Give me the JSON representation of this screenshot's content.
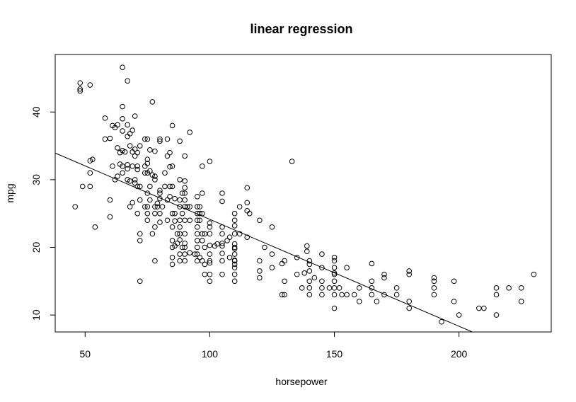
{
  "chart_data": {
    "type": "scatter",
    "title": "linear regression",
    "xlabel": "horsepower",
    "ylabel": "mpg",
    "xlim": [
      38,
      237
    ],
    "ylim": [
      7.5,
      48.5
    ],
    "x_ticks": [
      50,
      100,
      150,
      200
    ],
    "y_ticks": [
      10,
      20,
      30,
      40
    ],
    "grid": false,
    "legend": "none",
    "marker": "open-circle",
    "colors": {
      "points": "#000000",
      "line": "#000000",
      "frame": "#000000",
      "background": "#ffffff"
    },
    "regression_line": {
      "intercept": 39.94,
      "slope": -0.158
    },
    "points": [
      [
        46,
        26
      ],
      [
        48,
        44.3
      ],
      [
        48,
        43.4
      ],
      [
        48,
        43.1
      ],
      [
        49,
        29
      ],
      [
        52,
        44
      ],
      [
        52,
        29
      ],
      [
        52,
        31
      ],
      [
        52,
        32.8
      ],
      [
        53,
        33
      ],
      [
        54,
        23
      ],
      [
        58,
        36
      ],
      [
        58,
        39.1
      ],
      [
        60,
        36.1
      ],
      [
        60,
        27
      ],
      [
        60,
        24.5
      ],
      [
        61,
        38
      ],
      [
        61,
        32
      ],
      [
        62,
        37.7
      ],
      [
        62,
        30
      ],
      [
        63,
        38.1
      ],
      [
        63,
        34.7
      ],
      [
        63,
        30.5
      ],
      [
        64,
        32.3
      ],
      [
        64,
        34
      ],
      [
        65,
        46.6
      ],
      [
        65,
        40.8
      ],
      [
        65,
        39
      ],
      [
        65,
        37.2
      ],
      [
        65,
        34.3
      ],
      [
        65,
        32
      ],
      [
        65,
        31
      ],
      [
        66,
        34.1
      ],
      [
        67,
        44.6
      ],
      [
        67,
        38.1
      ],
      [
        67,
        36.4
      ],
      [
        67,
        31.6
      ],
      [
        67,
        30
      ],
      [
        67,
        32.2
      ],
      [
        68,
        36.8
      ],
      [
        68,
        29.8
      ],
      [
        68,
        35
      ],
      [
        68,
        26
      ],
      [
        69,
        37.3
      ],
      [
        69,
        32
      ],
      [
        69,
        26.6
      ],
      [
        69,
        34.1
      ],
      [
        70,
        39.4
      ],
      [
        70,
        33.5
      ],
      [
        70,
        29.5
      ],
      [
        70,
        34.5
      ],
      [
        70,
        30
      ],
      [
        71,
        32
      ],
      [
        71,
        31.5
      ],
      [
        71,
        29
      ],
      [
        71,
        25
      ],
      [
        71,
        34
      ],
      [
        72,
        27
      ],
      [
        72,
        22
      ],
      [
        72,
        35
      ],
      [
        72,
        21
      ],
      [
        72,
        15
      ],
      [
        72,
        29
      ],
      [
        74,
        36
      ],
      [
        74,
        32
      ],
      [
        74,
        26
      ],
      [
        74,
        31
      ],
      [
        75,
        36
      ],
      [
        75,
        33
      ],
      [
        75,
        28
      ],
      [
        75,
        26
      ],
      [
        75,
        25
      ],
      [
        75,
        24
      ],
      [
        75,
        32.4
      ],
      [
        75,
        31
      ],
      [
        76,
        31.3
      ],
      [
        76,
        34.4
      ],
      [
        76,
        29
      ],
      [
        76,
        27
      ],
      [
        77,
        41.5
      ],
      [
        77,
        30.7
      ],
      [
        77,
        22
      ],
      [
        78,
        30
      ],
      [
        78,
        25
      ],
      [
        78,
        34.2
      ],
      [
        78,
        30.5
      ],
      [
        78,
        26
      ],
      [
        78,
        23
      ],
      [
        78,
        18
      ],
      [
        79,
        26
      ],
      [
        79,
        26.5
      ],
      [
        80,
        36
      ],
      [
        80,
        28
      ],
      [
        80,
        25
      ],
      [
        80,
        28.4
      ],
      [
        80,
        27.2
      ],
      [
        80,
        35.7
      ],
      [
        80,
        23.7
      ],
      [
        81,
        26
      ],
      [
        82,
        31
      ],
      [
        82,
        29
      ],
      [
        83,
        27
      ],
      [
        83,
        24
      ],
      [
        83,
        33.5
      ],
      [
        83,
        36
      ],
      [
        84,
        31.9
      ],
      [
        84,
        34
      ],
      [
        84,
        29
      ],
      [
        84,
        27.5
      ],
      [
        85,
        32
      ],
      [
        85,
        38
      ],
      [
        85,
        29
      ],
      [
        85,
        25
      ],
      [
        85,
        23
      ],
      [
        85,
        21
      ],
      [
        85,
        20
      ],
      [
        85,
        18.5
      ],
      [
        85,
        17.5
      ],
      [
        86,
        25
      ],
      [
        86,
        27.2
      ],
      [
        86,
        23.9
      ],
      [
        86,
        20.2
      ],
      [
        87,
        22
      ],
      [
        87,
        20.6
      ],
      [
        88,
        26
      ],
      [
        88,
        22
      ],
      [
        88,
        23
      ],
      [
        88,
        19
      ],
      [
        88,
        35.7
      ],
      [
        88,
        30
      ],
      [
        88,
        27
      ],
      [
        88,
        24
      ],
      [
        88,
        18
      ],
      [
        88,
        21.1
      ],
      [
        89,
        28
      ],
      [
        89,
        25
      ],
      [
        89,
        20
      ],
      [
        90,
        28
      ],
      [
        90,
        33.5
      ],
      [
        90,
        26
      ],
      [
        90,
        24
      ],
      [
        90,
        22
      ],
      [
        90,
        28.8
      ],
      [
        90,
        29.8
      ],
      [
        90,
        19
      ],
      [
        90,
        20.6
      ],
      [
        90,
        18
      ],
      [
        90,
        20
      ],
      [
        90,
        27
      ],
      [
        91,
        26
      ],
      [
        92,
        37
      ],
      [
        92,
        26
      ],
      [
        92,
        24
      ],
      [
        92,
        19.2
      ],
      [
        94,
        19
      ],
      [
        95,
        26
      ],
      [
        95,
        24
      ],
      [
        95,
        27.5
      ],
      [
        95,
        25
      ],
      [
        95,
        23
      ],
      [
        95,
        22
      ],
      [
        95,
        21
      ],
      [
        95,
        20
      ],
      [
        95,
        19
      ],
      [
        95,
        18
      ],
      [
        96,
        26
      ],
      [
        96,
        24
      ],
      [
        96,
        25
      ],
      [
        96,
        18.5
      ],
      [
        97,
        25
      ],
      [
        97,
        22
      ],
      [
        97,
        21
      ],
      [
        97,
        32
      ],
      [
        97,
        18
      ],
      [
        97,
        28
      ],
      [
        98,
        20
      ],
      [
        98,
        16
      ],
      [
        98,
        22
      ],
      [
        98,
        17.5
      ],
      [
        100,
        32.7
      ],
      [
        100,
        23
      ],
      [
        100,
        20.3
      ],
      [
        100,
        19
      ],
      [
        100,
        18
      ],
      [
        100,
        16
      ],
      [
        100,
        15
      ],
      [
        100,
        17.7
      ],
      [
        100,
        23.6
      ],
      [
        100,
        22
      ],
      [
        102,
        20.2
      ],
      [
        103,
        20.5
      ],
      [
        105,
        26.8
      ],
      [
        105,
        28
      ],
      [
        105,
        23
      ],
      [
        105,
        19.1
      ],
      [
        105,
        18
      ],
      [
        105,
        16
      ],
      [
        105,
        20.6
      ],
      [
        105,
        22
      ],
      [
        105,
        20.2
      ],
      [
        107,
        21
      ],
      [
        108,
        21.5
      ],
      [
        108,
        18.5
      ],
      [
        110,
        25
      ],
      [
        110,
        24
      ],
      [
        110,
        23.2
      ],
      [
        110,
        20
      ],
      [
        110,
        19
      ],
      [
        110,
        18
      ],
      [
        110,
        17.5
      ],
      [
        110,
        16
      ],
      [
        110,
        15
      ],
      [
        110,
        22
      ],
      [
        110,
        18.1
      ],
      [
        110,
        17
      ],
      [
        110,
        20.5
      ],
      [
        110,
        19.8
      ],
      [
        112,
        22
      ],
      [
        112,
        26
      ],
      [
        115,
        28.8
      ],
      [
        115,
        26.6
      ],
      [
        115,
        25.4
      ],
      [
        115,
        21.5
      ],
      [
        116,
        25
      ],
      [
        120,
        24
      ],
      [
        120,
        18
      ],
      [
        120,
        16.5
      ],
      [
        120,
        15.5
      ],
      [
        122,
        20
      ],
      [
        125,
        23
      ],
      [
        125,
        19
      ],
      [
        125,
        17
      ],
      [
        129,
        17.6
      ],
      [
        129,
        13
      ],
      [
        130,
        13
      ],
      [
        130,
        18
      ],
      [
        130,
        15
      ],
      [
        133,
        32.7
      ],
      [
        135,
        18.5
      ],
      [
        135,
        16
      ],
      [
        137,
        14
      ],
      [
        138,
        16.2
      ],
      [
        139,
        20.2
      ],
      [
        139,
        19.4
      ],
      [
        140,
        17.5
      ],
      [
        140,
        18
      ],
      [
        140,
        16.5
      ],
      [
        140,
        15
      ],
      [
        140,
        13
      ],
      [
        140,
        14
      ],
      [
        142,
        15.5
      ],
      [
        145,
        13
      ],
      [
        145,
        17
      ],
      [
        145,
        14
      ],
      [
        145,
        15
      ],
      [
        145,
        19
      ],
      [
        148,
        14
      ],
      [
        150,
        18
      ],
      [
        150,
        15
      ],
      [
        150,
        14
      ],
      [
        150,
        13
      ],
      [
        150,
        16.2
      ],
      [
        150,
        18.5
      ],
      [
        150,
        16
      ],
      [
        150,
        17
      ],
      [
        150,
        11
      ],
      [
        152,
        14
      ],
      [
        153,
        13
      ],
      [
        155,
        17
      ],
      [
        155,
        13
      ],
      [
        158,
        13
      ],
      [
        160,
        12
      ],
      [
        160,
        14
      ],
      [
        165,
        17.6
      ],
      [
        165,
        14
      ],
      [
        165,
        15
      ],
      [
        165,
        13
      ],
      [
        167,
        12
      ],
      [
        170,
        16
      ],
      [
        170,
        15.5
      ],
      [
        170,
        13
      ],
      [
        175,
        14
      ],
      [
        175,
        13
      ],
      [
        180,
        16.5
      ],
      [
        180,
        16
      ],
      [
        180,
        12
      ],
      [
        180,
        11
      ],
      [
        190,
        15.5
      ],
      [
        190,
        15
      ],
      [
        190,
        14
      ],
      [
        190,
        13
      ],
      [
        193,
        9
      ],
      [
        198,
        15
      ],
      [
        198,
        12
      ],
      [
        200,
        10
      ],
      [
        208,
        11
      ],
      [
        210,
        11
      ],
      [
        215,
        14
      ],
      [
        215,
        13
      ],
      [
        215,
        10
      ],
      [
        220,
        14
      ],
      [
        225,
        14
      ],
      [
        225,
        12
      ],
      [
        230,
        16
      ]
    ]
  }
}
